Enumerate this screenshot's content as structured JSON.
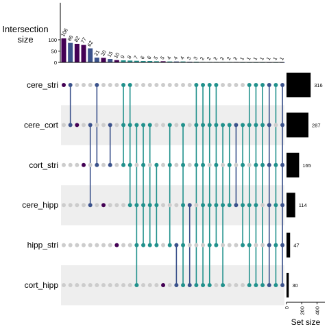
{
  "chart_data": {
    "type": "upset",
    "intersection_axis": {
      "title": "Intersection\nsize",
      "ticks": [
        0,
        50,
        100
      ],
      "ylim": [
        0,
        140
      ]
    },
    "set_size_axis": {
      "title": "Set size",
      "ticks": [
        0,
        200,
        400
      ],
      "xlim": [
        0,
        480
      ]
    },
    "sets": [
      {
        "name": "cere_stri",
        "size": 316
      },
      {
        "name": "cere_cort",
        "size": 287
      },
      {
        "name": "cort_stri",
        "size": 165
      },
      {
        "name": "cere_hipp",
        "size": 114
      },
      {
        "name": "hipp_stri",
        "size": 47
      },
      {
        "name": "cort_hipp",
        "size": 30
      }
    ],
    "intersections": [
      {
        "value": 106,
        "sets": [
          "cere_stri"
        ]
      },
      {
        "value": 86,
        "sets": [
          "cere_stri",
          "cere_cort"
        ]
      },
      {
        "value": 82,
        "sets": [
          "cere_cort"
        ]
      },
      {
        "value": 77,
        "sets": [
          "cort_stri"
        ]
      },
      {
        "value": 62,
        "sets": [
          "cere_cort",
          "cere_hipp"
        ]
      },
      {
        "value": 21,
        "sets": [
          "cere_stri",
          "cort_stri"
        ]
      },
      {
        "value": 20,
        "sets": [
          "cere_hipp"
        ]
      },
      {
        "value": 15,
        "sets": [
          "cere_cort",
          "cort_stri"
        ]
      },
      {
        "value": 10,
        "sets": [
          "hipp_stri"
        ]
      },
      {
        "value": 9,
        "sets": [
          "cere_stri",
          "cere_cort",
          "cort_stri"
        ]
      },
      {
        "value": 8,
        "sets": [
          "cere_stri",
          "cere_cort",
          "cort_stri",
          "cere_hipp"
        ]
      },
      {
        "value": 7,
        "sets": [
          "cere_cort",
          "cere_hipp",
          "hipp_stri",
          "cort_hipp"
        ]
      },
      {
        "value": 6,
        "sets": [
          "cere_cort",
          "cort_stri",
          "cere_hipp",
          "hipp_stri"
        ]
      },
      {
        "value": 6,
        "sets": [
          "cere_cort",
          "cere_hipp",
          "hipp_stri"
        ]
      },
      {
        "value": 5,
        "sets": [
          "cort_stri",
          "cere_hipp",
          "hipp_stri"
        ]
      },
      {
        "value": 5,
        "sets": [
          "cort_hipp"
        ]
      },
      {
        "value": 4,
        "sets": [
          "cere_cort",
          "cort_stri",
          "hipp_stri"
        ]
      },
      {
        "value": 4,
        "sets": [
          "hipp_stri",
          "cort_hipp"
        ]
      },
      {
        "value": 4,
        "sets": [
          "cere_cort",
          "cort_stri",
          "cere_hipp",
          "hipp_stri",
          "cort_hipp"
        ]
      },
      {
        "value": 3,
        "sets": [
          "cere_hipp",
          "cort_hipp"
        ]
      },
      {
        "value": 3,
        "sets": [
          "cere_stri",
          "cere_cort",
          "cort_stri",
          "cort_hipp"
        ]
      },
      {
        "value": 2,
        "sets": [
          "cere_stri",
          "cere_cort",
          "cort_stri",
          "cere_hipp",
          "cort_hipp"
        ]
      },
      {
        "value": 2,
        "sets": [
          "cere_stri",
          "cere_cort",
          "cere_hipp",
          "hipp_stri",
          "cort_hipp"
        ]
      },
      {
        "value": 2,
        "sets": [
          "cere_stri",
          "cere_cort",
          "cort_stri",
          "cere_hipp",
          "hipp_stri"
        ]
      },
      {
        "value": 2,
        "sets": [
          "cere_cort",
          "cere_hipp",
          "cort_hipp"
        ]
      },
      {
        "value": 2,
        "sets": [
          "cere_cort",
          "cort_stri",
          "cere_hipp"
        ]
      },
      {
        "value": 2,
        "sets": [
          "cere_cort",
          "cere_hipp"
        ]
      },
      {
        "value": 1,
        "sets": [
          "cere_cort",
          "cort_stri",
          "cere_hipp",
          "hipp_stri"
        ]
      },
      {
        "value": 1,
        "sets": [
          "cere_stri",
          "cere_cort",
          "cere_hipp",
          "hipp_stri",
          "cort_hipp"
        ]
      },
      {
        "value": 1,
        "sets": [
          "cere_stri",
          "cere_cort",
          "cort_stri",
          "cere_hipp",
          "cort_hipp"
        ]
      },
      {
        "value": 1,
        "sets": [
          "cere_stri",
          "cere_cort",
          "cort_stri",
          "cort_hipp"
        ]
      },
      {
        "value": 1,
        "sets": [
          "cere_stri",
          "cere_cort",
          "cort_stri",
          "cere_hipp",
          "hipp_stri",
          "cort_hipp"
        ]
      },
      {
        "value": 1,
        "sets": [
          "cere_stri",
          "cort_stri",
          "cere_hipp",
          "hipp_stri",
          "cort_hipp"
        ]
      },
      {
        "value": 1,
        "sets": [
          "cere_stri",
          "cere_cort",
          "cort_stri",
          "cere_hipp",
          "hipp_stri",
          "cort_hipp"
        ]
      }
    ],
    "colors": {
      "degree": [
        "#440154",
        "#3b528b",
        "#21918c",
        "#21918c",
        "#21918c",
        "#3b528b"
      ],
      "inactive_dot": "#cccccc",
      "set_bar": "#000000",
      "stripe": "#eeeeee"
    }
  }
}
